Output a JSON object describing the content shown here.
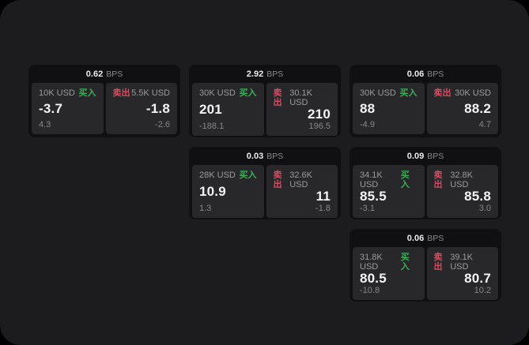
{
  "labels": {
    "bps_unit": "BPS",
    "buy": "买入",
    "sell": "卖出"
  },
  "colors": {
    "buy": "#3bae58",
    "sell": "#d44e61",
    "window_bg": "#1c1c1e",
    "card_bg": "#101012",
    "panel_bg": "#28282a"
  },
  "cards": [
    {
      "col": 1,
      "row": 1,
      "bps": "0.62",
      "buy": {
        "size": "10K USD",
        "value": "-3.7",
        "delta": "4.3"
      },
      "sell": {
        "size": "5.5K USD",
        "value": "-1.8",
        "delta": "-2.6"
      }
    },
    {
      "col": 2,
      "row": 1,
      "bps": "2.92",
      "buy": {
        "size": "30K USD",
        "value": "201",
        "delta": "-188.1"
      },
      "sell": {
        "size": "30.1K USD",
        "value": "210",
        "delta": "196.5"
      }
    },
    {
      "col": 3,
      "row": 1,
      "bps": "0.06",
      "buy": {
        "size": "30K USD",
        "value": "88",
        "delta": "-4.9"
      },
      "sell": {
        "size": "30K USD",
        "value": "88.2",
        "delta": "4.7"
      }
    },
    {
      "col": 2,
      "row": 2,
      "bps": "0.03",
      "buy": {
        "size": "28K USD",
        "value": "10.9",
        "delta": "1.3"
      },
      "sell": {
        "size": "32.6K USD",
        "value": "11",
        "delta": "-1.8"
      }
    },
    {
      "col": 3,
      "row": 2,
      "bps": "0.09",
      "buy": {
        "size": "34.1K USD",
        "value": "85.5",
        "delta": "-3.1"
      },
      "sell": {
        "size": "32.8K USD",
        "value": "85.8",
        "delta": "3.0"
      }
    },
    {
      "col": 3,
      "row": 3,
      "bps": "0.06",
      "buy": {
        "size": "31.8K USD",
        "value": "80.5",
        "delta": "-10.8"
      },
      "sell": {
        "size": "39.1K USD",
        "value": "80.7",
        "delta": "10.2"
      }
    }
  ]
}
